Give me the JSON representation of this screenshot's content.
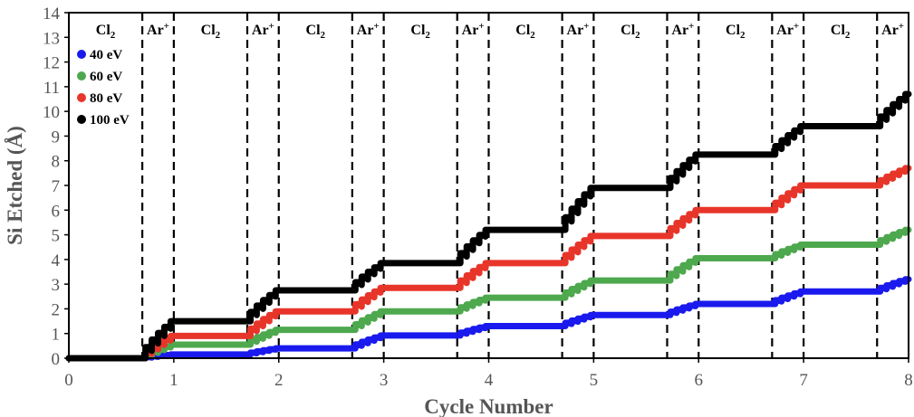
{
  "chart_data": {
    "type": "line",
    "xlabel": "Cycle Number",
    "ylabel": "Si Etched (Å)",
    "xlim": [
      0,
      8
    ],
    "ylim": [
      0,
      14
    ],
    "x_ticks": [
      0,
      1,
      2,
      3,
      4,
      5,
      6,
      7,
      8
    ],
    "y_ticks": [
      0,
      1,
      2,
      3,
      4,
      5,
      6,
      7,
      8,
      9,
      10,
      11,
      12,
      13,
      14
    ],
    "grid": false,
    "legend": "top-left",
    "phase_boundaries": [
      0.7,
      1,
      1.7,
      2,
      2.7,
      3,
      3.7,
      4,
      4.7,
      5,
      5.7,
      6,
      6.7,
      7,
      7.7,
      8
    ],
    "phases": [
      {
        "label": "Cl",
        "sub": "2",
        "x": 0.35
      },
      {
        "label": "Ar",
        "sup": "+",
        "x": 0.85
      },
      {
        "label": "Cl",
        "sub": "2",
        "x": 1.35
      },
      {
        "label": "Ar",
        "sup": "+",
        "x": 1.85
      },
      {
        "label": "Cl",
        "sub": "2",
        "x": 2.35
      },
      {
        "label": "Ar",
        "sup": "+",
        "x": 2.85
      },
      {
        "label": "Cl",
        "sub": "2",
        "x": 3.35
      },
      {
        "label": "Ar",
        "sup": "+",
        "x": 3.85
      },
      {
        "label": "Cl",
        "sub": "2",
        "x": 4.35
      },
      {
        "label": "Ar",
        "sup": "+",
        "x": 4.85
      },
      {
        "label": "Cl",
        "sub": "2",
        "x": 5.35
      },
      {
        "label": "Ar",
        "sup": "+",
        "x": 5.85
      },
      {
        "label": "Cl",
        "sub": "2",
        "x": 6.35
      },
      {
        "label": "Ar",
        "sup": "+",
        "x": 6.85
      },
      {
        "label": "Cl",
        "sub": "2",
        "x": 7.35
      },
      {
        "label": "Ar",
        "sup": "+",
        "x": 7.85
      }
    ],
    "series": [
      {
        "name": "40 eV",
        "color": "#1a1aee",
        "levels": [
          0,
          0.15,
          0.4,
          0.92,
          1.3,
          1.75,
          2.2,
          2.7,
          3.2
        ]
      },
      {
        "name": "60 eV",
        "color": "#4ea84e",
        "levels": [
          0,
          0.55,
          1.15,
          1.9,
          2.45,
          3.15,
          4.05,
          4.6,
          5.2
        ]
      },
      {
        "name": "80 eV",
        "color": "#e8352a",
        "levels": [
          0,
          0.9,
          1.9,
          2.85,
          3.85,
          4.95,
          6.0,
          7.0,
          7.7
        ]
      },
      {
        "name": "100 eV",
        "color": "#000000",
        "levels": [
          0,
          1.5,
          2.75,
          3.85,
          5.2,
          6.9,
          8.25,
          9.4,
          10.7
        ]
      }
    ]
  }
}
